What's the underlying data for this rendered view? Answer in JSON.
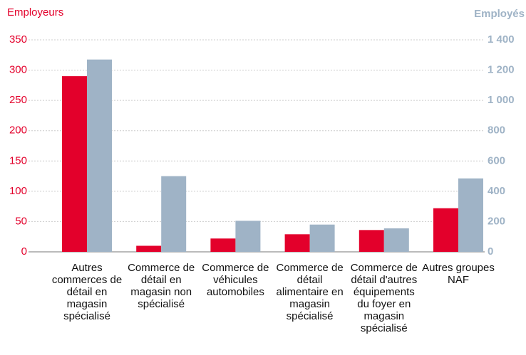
{
  "chart_data": {
    "type": "bar",
    "y_label": "Employeurs",
    "y2_label": "Employés",
    "categories": [
      "Autres commerces de détail en magasin spécialisé",
      "Commerce de détail en magasin non spécialisé",
      "Commerce de véhicules automobiles",
      "Commerce de détail alimentaire en magasin spécialisé",
      "Commerce de détail d'autres équipements du foyer en magasin spécialisé",
      "Autres groupes NAF"
    ],
    "series": [
      {
        "name": "Employeurs",
        "color": "#e3002b",
        "values": [
          290,
          10,
          22,
          29,
          36,
          72
        ]
      },
      {
        "name": "Employés",
        "color": "#9fb3c6",
        "axis": "y2",
        "values": [
          1270,
          500,
          205,
          180,
          155,
          485
        ]
      }
    ],
    "ylim": [
      0,
      350
    ],
    "yticks": [
      0,
      50,
      100,
      150,
      200,
      250,
      300,
      350
    ],
    "y2lim": [
      0,
      1400
    ],
    "y2ticks": [
      0,
      200,
      400,
      600,
      800,
      {
        "value": 1000,
        "label": "1 000"
      },
      {
        "value": 1200,
        "label": "1 200"
      },
      {
        "value": 1400,
        "label": "1 400"
      }
    ],
    "grid": true
  }
}
